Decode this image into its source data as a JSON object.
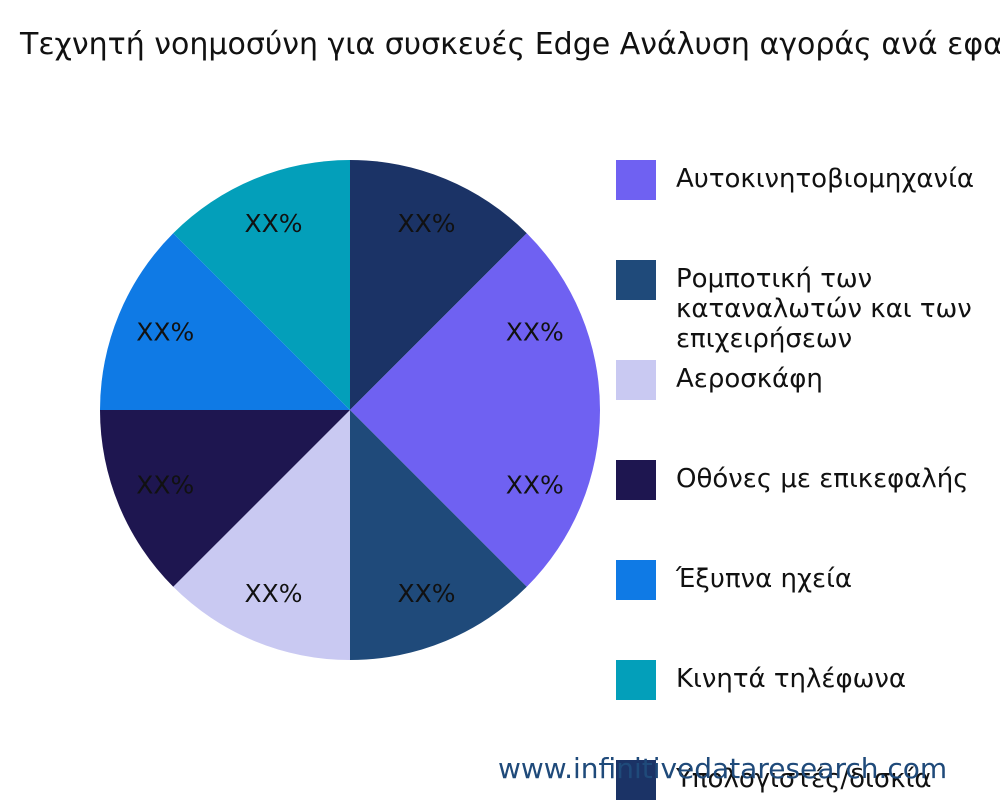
{
  "chart_data": {
    "type": "pie",
    "title": "Τεχνητή νοημοσύνη για συσκευές Edge Ανάλυση αγοράς ανά εφαρμογή",
    "categories": [
      "Αυτοκινητοβιομηχανία",
      "Ρομποτική των καταναλωτών και των επιχειρήσεων",
      "Αεροσκάφη",
      "Οθόνες με επικεφαλής",
      "Έξυπνα ηχεία",
      "Κινητά τηλέφωνα",
      "Υπολογιστές/δισκία",
      null
    ],
    "values": [
      12.5,
      12.5,
      12.5,
      12.5,
      12.5,
      12.5,
      12.5,
      12.5
    ],
    "value_labels": [
      "XX%",
      "XX%",
      "XX%",
      "XX%",
      "XX%",
      "XX%",
      "XX%",
      "XX%"
    ],
    "colors": [
      "#6f61f2",
      "#1f4a7a",
      "#c9c9f2",
      "#1e1650",
      "#0f7ae5",
      "#039fba",
      "#1b3366",
      "#6f61f2"
    ],
    "watermark": "www.infinitivedataresearch.com"
  }
}
